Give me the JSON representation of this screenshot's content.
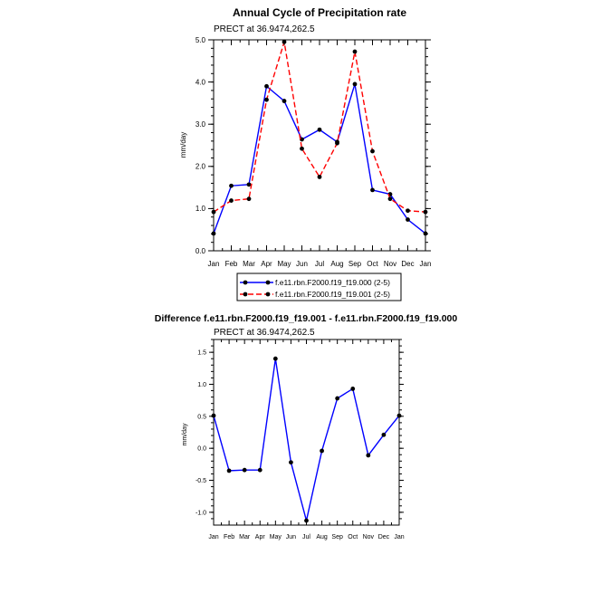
{
  "chart_data": [
    {
      "type": "line",
      "title": "Annual Cycle of Precipitation rate",
      "subtitle": "PRECT at 36.9474,262.5",
      "xlabel": "",
      "ylabel": "mm/day",
      "categories": [
        "Jan",
        "Feb",
        "Mar",
        "Apr",
        "May",
        "Jun",
        "Jul",
        "Aug",
        "Sep",
        "Oct",
        "Nov",
        "Dec",
        "Jan"
      ],
      "ylim": [
        0,
        5
      ],
      "yticks": [
        0,
        1,
        2,
        3,
        4,
        5
      ],
      "ytick_labels": [
        "0.0",
        "1.0",
        "2.0",
        "3.0",
        "4.0",
        "5.0"
      ],
      "legend_position": "bottom",
      "series": [
        {
          "name": "f.e11.rbn.F2000.f19_f19.000 (2-5)",
          "color": "#0000ff",
          "dash": "solid",
          "values": [
            0.41,
            1.54,
            1.57,
            3.9,
            3.55,
            2.64,
            2.87,
            2.58,
            3.95,
            1.44,
            1.34,
            0.74,
            0.41
          ]
        },
        {
          "name": "f.e11.rbn.F2000.f19_f19.001 (2-5)",
          "color": "#ff0000",
          "dash": "dashed",
          "values": [
            0.92,
            1.19,
            1.23,
            3.58,
            4.95,
            2.42,
            1.75,
            2.55,
            4.72,
            2.36,
            1.23,
            0.95,
            0.92
          ]
        }
      ]
    },
    {
      "type": "line",
      "title": "Difference f.e11.rbn.F2000.f19_f19.001 - f.e11.rbn.F2000.f19_f19.000",
      "subtitle": "PRECT at 36.9474,262.5",
      "xlabel": "",
      "ylabel": "mm/day",
      "categories": [
        "Jan",
        "Feb",
        "Mar",
        "Apr",
        "May",
        "Jun",
        "Jul",
        "Aug",
        "Sep",
        "Oct",
        "Nov",
        "Dec",
        "Jan"
      ],
      "ylim": [
        -1.2,
        1.7
      ],
      "yticks": [
        -1.0,
        -0.5,
        0.0,
        0.5,
        1.0,
        1.5
      ],
      "ytick_labels": [
        "-1.0",
        "-0.5",
        "0.0",
        "0.5",
        "1.0",
        "1.5"
      ],
      "series": [
        {
          "color": "#0000ff",
          "dash": "solid",
          "values": [
            0.51,
            -0.35,
            -0.34,
            -0.34,
            1.4,
            -0.22,
            -1.13,
            -0.04,
            0.78,
            0.93,
            -0.11,
            0.21,
            0.51
          ]
        }
      ]
    }
  ]
}
